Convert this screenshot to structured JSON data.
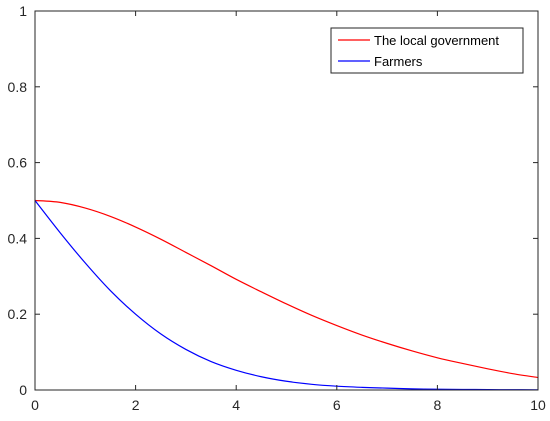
{
  "chart_data": {
    "type": "line",
    "title": "",
    "xlabel": "",
    "ylabel": "",
    "xlim": [
      0,
      10
    ],
    "ylim": [
      0,
      1
    ],
    "x_ticks": [
      0,
      2,
      4,
      6,
      8,
      10
    ],
    "y_ticks": [
      0,
      0.2,
      0.4,
      0.6,
      0.8,
      1
    ],
    "x_tick_labels": [
      "0",
      "2",
      "4",
      "6",
      "8",
      "10"
    ],
    "y_tick_labels": [
      "0",
      "0.2",
      "0.4",
      "0.6",
      "0.8",
      "1"
    ],
    "grid": false,
    "legend_position": "top-right",
    "x": [
      0,
      0.5,
      1,
      1.5,
      2,
      2.5,
      3,
      3.5,
      4,
      4.5,
      5,
      5.5,
      6,
      6.5,
      7,
      7.5,
      8,
      8.5,
      9,
      9.5,
      10
    ],
    "series": [
      {
        "name": "The local government",
        "color": "#ff0000",
        "values": [
          0.5,
          0.495,
          0.48,
          0.458,
          0.43,
          0.398,
          0.363,
          0.328,
          0.292,
          0.259,
          0.227,
          0.197,
          0.17,
          0.145,
          0.123,
          0.103,
          0.085,
          0.07,
          0.056,
          0.043,
          0.033
        ]
      },
      {
        "name": "Farmers",
        "color": "#0000ff",
        "values": [
          0.5,
          0.415,
          0.335,
          0.262,
          0.2,
          0.148,
          0.107,
          0.075,
          0.052,
          0.035,
          0.023,
          0.015,
          0.01,
          0.007,
          0.005,
          0.003,
          0.002,
          0.0015,
          0.001,
          0.0007,
          0.0005
        ]
      }
    ]
  }
}
